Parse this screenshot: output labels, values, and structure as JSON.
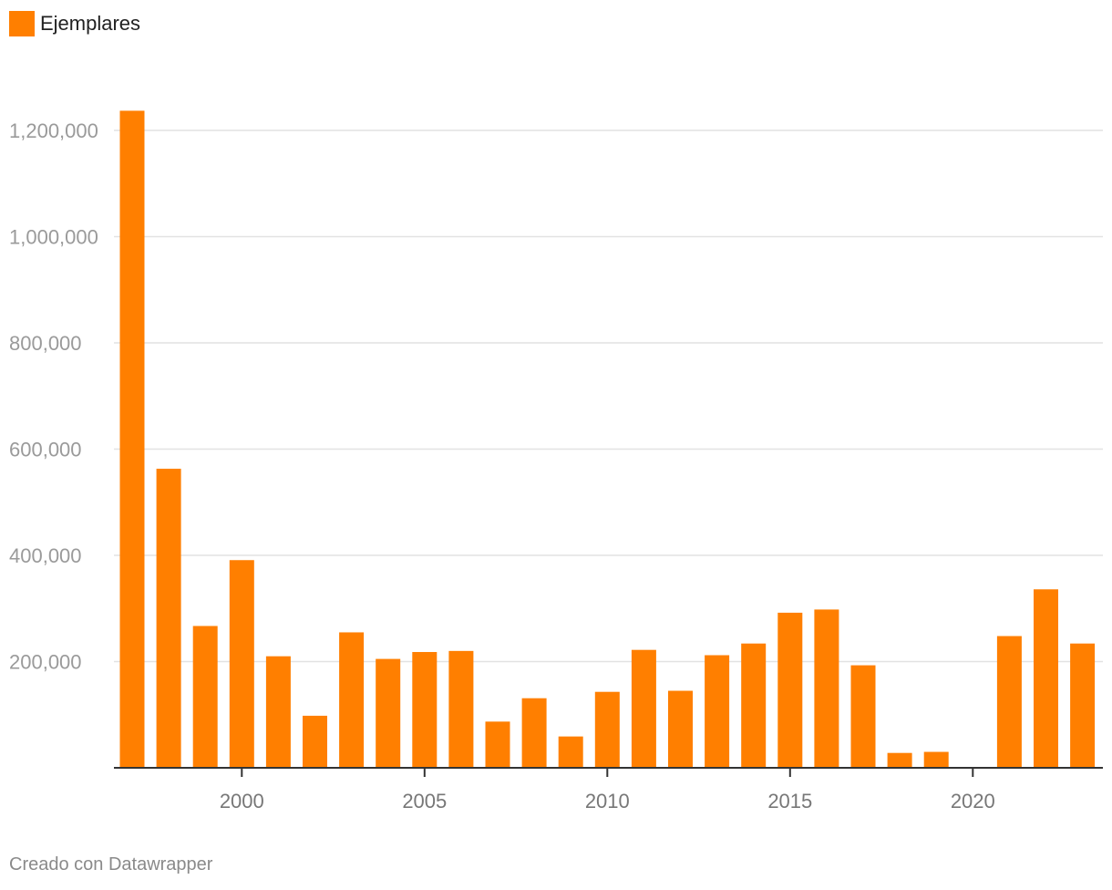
{
  "legend": {
    "label": "Ejemplares"
  },
  "footer": {
    "credit": "Creado con Datawrapper"
  },
  "colors": {
    "bar": "#ff7f00",
    "grid": "#e2e2e2",
    "axis": "#333333"
  },
  "chart_data": {
    "type": "bar",
    "categories": [
      1997,
      1998,
      1999,
      2000,
      2001,
      2002,
      2003,
      2004,
      2005,
      2006,
      2007,
      2008,
      2009,
      2010,
      2011,
      2012,
      2013,
      2014,
      2015,
      2016,
      2017,
      2018,
      2019,
      2020,
      2021,
      2022,
      2023
    ],
    "series": [
      {
        "name": "Ejemplares",
        "values": [
          1237000,
          563000,
          267000,
          391000,
          210000,
          98000,
          255000,
          205000,
          218000,
          220000,
          87000,
          131000,
          59000,
          143000,
          222000,
          145000,
          212000,
          234000,
          292000,
          298000,
          193000,
          28000,
          30000,
          0,
          248000,
          336000,
          234000
        ]
      }
    ],
    "ylim": [
      0,
      1200000
    ],
    "yticks": [
      200000,
      400000,
      600000,
      800000,
      1000000,
      1200000
    ],
    "ytick_labels": [
      "200,000",
      "400,000",
      "600,000",
      "800,000",
      "1,000,000",
      "1,200,000"
    ],
    "xticks": [
      2000,
      2005,
      2010,
      2015,
      2020
    ],
    "xtick_labels": [
      "2000",
      "2005",
      "2010",
      "2015",
      "2020"
    ],
    "grid": true,
    "legend_position": "top-left"
  }
}
